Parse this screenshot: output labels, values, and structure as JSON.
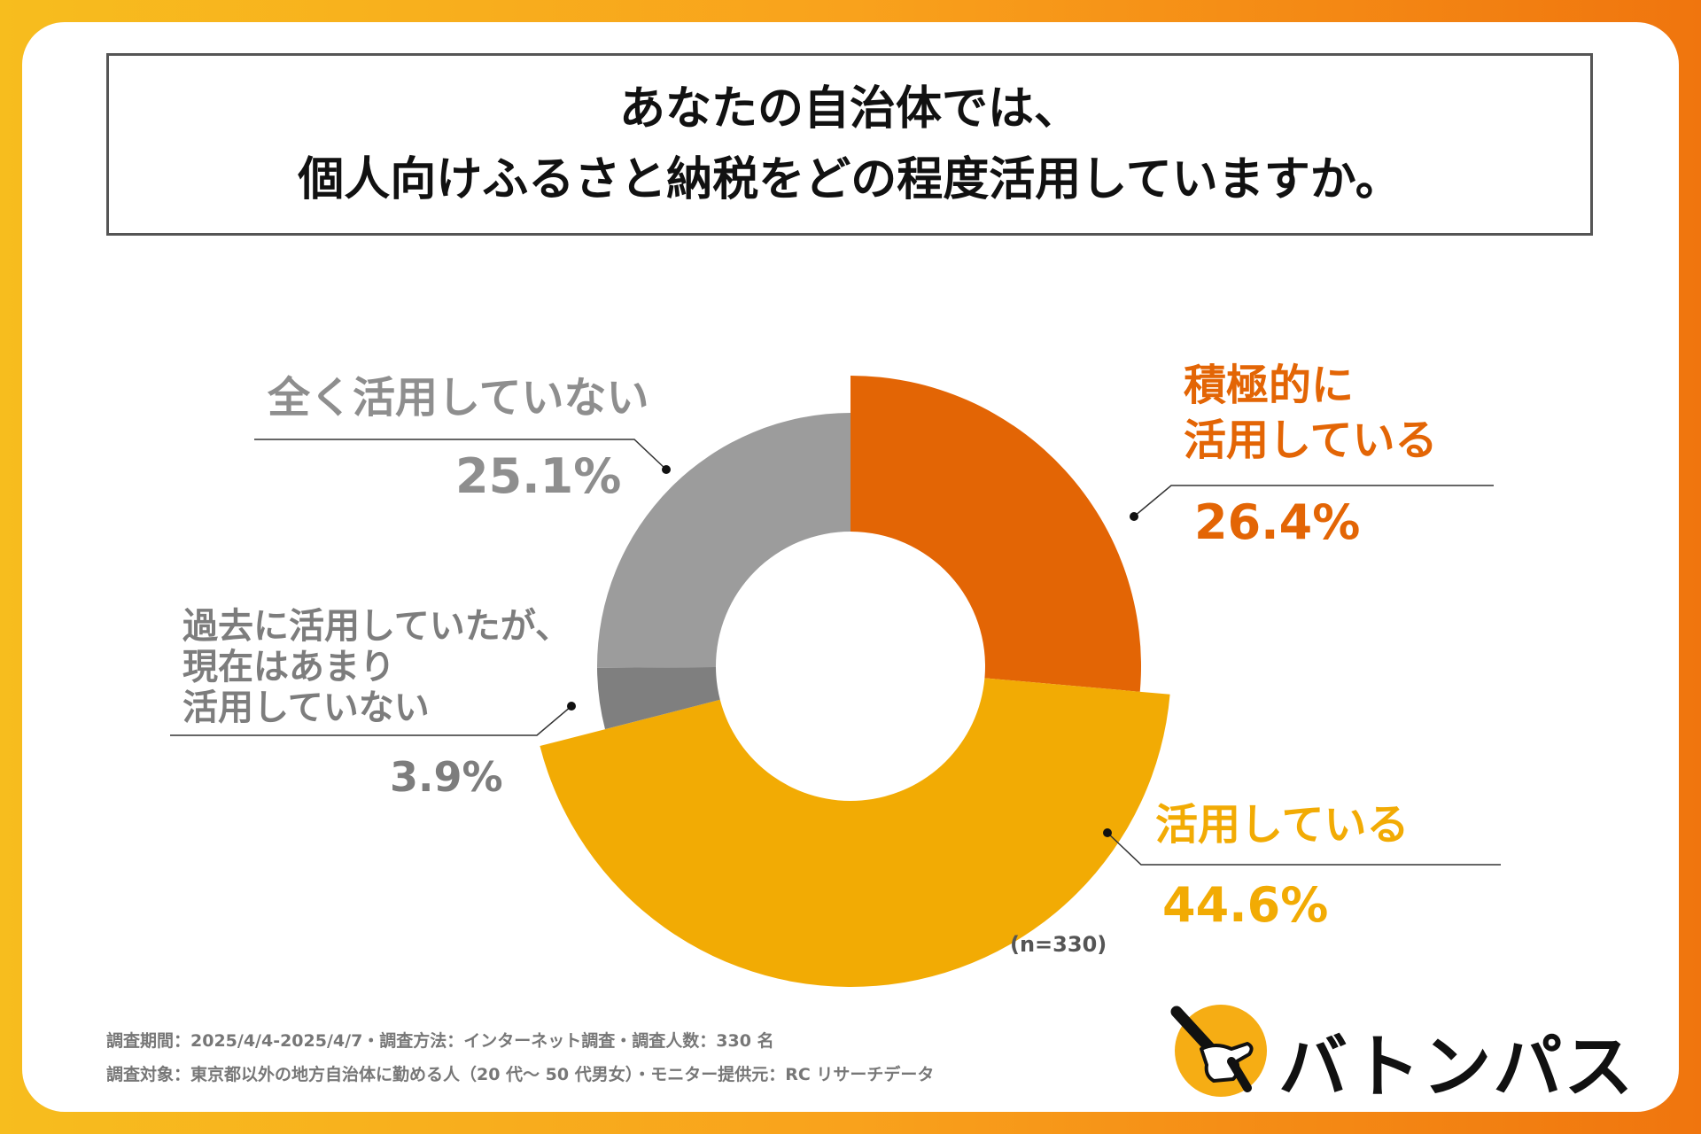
{
  "title": {
    "line1": "あなたの自治体では、",
    "line2": "個人向けふるさと納税をどの程度活用していますか。"
  },
  "chart_data": {
    "type": "pie",
    "subtype": "donut",
    "title": "あなたの自治体では、個人向けふるさと納税をどの程度活用していますか。",
    "sample_note": "(n=330)",
    "slices": [
      {
        "label_lines": [
          "積極的に",
          "活用している"
        ],
        "value": 26.4,
        "display": "26.4%",
        "color": "#e36505"
      },
      {
        "label_lines": [
          "活用している"
        ],
        "value": 44.6,
        "display": "44.6%",
        "color": "#f2ab04"
      },
      {
        "label_lines": [
          "過去に活用していたが、",
          "現在はあまり",
          "活用していない"
        ],
        "value": 3.9,
        "display": "3.9%",
        "color": "#7f7f7f"
      },
      {
        "label_lines": [
          "全く活用していない"
        ],
        "value": 25.1,
        "display": "25.1%",
        "color": "#9c9c9c"
      }
    ]
  },
  "footnotes": {
    "line1": "調査期間：2025/4/4-2025/4/7・調査方法：インターネット調査・調査人数：330 名",
    "line2": "調査対象：東京都以外の地方自治体に勤める人（20 代～ 50 代男女）・モニター提供元：RC リサーチデータ"
  },
  "logo": {
    "text": "バトンパス",
    "icon": "baton-hand-icon",
    "circle_color": "#f6ad14"
  }
}
